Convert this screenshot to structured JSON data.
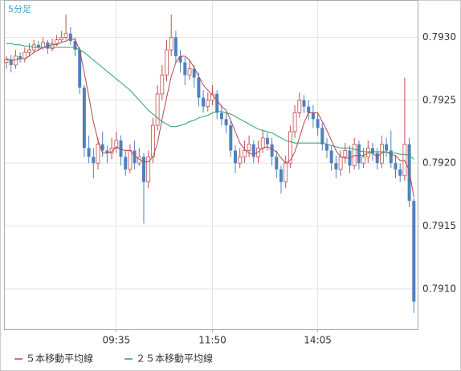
{
  "chart_data": {
    "type": "candlestick",
    "title": "5分足",
    "categories": [
      null,
      null,
      null,
      null,
      null,
      null,
      null,
      null,
      null,
      null,
      null,
      null,
      null,
      null,
      null,
      null,
      null,
      null,
      null,
      null,
      null,
      null,
      null,
      null,
      "09:35",
      null,
      null,
      null,
      null,
      null,
      null,
      null,
      null,
      null,
      null,
      null,
      null,
      null,
      null,
      null,
      null,
      null,
      null,
      null,
      null,
      "11:50",
      null,
      null,
      null,
      null,
      null,
      null,
      null,
      null,
      null,
      null,
      null,
      null,
      null,
      null,
      null,
      null,
      null,
      null,
      null,
      null,
      null,
      null,
      "14:05",
      null,
      null,
      null,
      null,
      null,
      null,
      null,
      null,
      null,
      null,
      null,
      null,
      null,
      null,
      null,
      null,
      null,
      null,
      null,
      null,
      null
    ],
    "open": [
      0.7928,
      0.79282,
      0.79278,
      0.79285,
      0.79283,
      0.79288,
      0.7929,
      0.79294,
      0.79292,
      0.79296,
      0.79291,
      0.79295,
      0.79298,
      0.793,
      0.79303,
      0.79297,
      0.7929,
      0.7926,
      0.79212,
      0.79205,
      0.792,
      0.79215,
      0.7921,
      0.79208,
      0.79212,
      0.79218,
      0.79205,
      0.79195,
      0.7921,
      0.792,
      0.79205,
      0.79185,
      0.79205,
      0.7923,
      0.79255,
      0.7927,
      0.7929,
      0.793,
      0.79285,
      0.7928,
      0.7927,
      0.79275,
      0.79268,
      0.79252,
      0.79245,
      0.7925,
      0.79255,
      0.7924,
      0.79235,
      0.7923,
      0.7921,
      0.792,
      0.79205,
      0.7921,
      0.79215,
      0.79205,
      0.79212,
      0.7922,
      0.79215,
      0.79205,
      0.79195,
      0.79185,
      0.792,
      0.79225,
      0.7924,
      0.7925,
      0.79245,
      0.7924,
      0.79235,
      0.79228,
      0.79215,
      0.7921,
      0.792,
      0.79195,
      0.79205,
      0.7921,
      0.79198,
      0.79215,
      0.792,
      0.79205,
      0.79212,
      0.79208,
      0.792,
      0.79215,
      0.7921,
      0.792,
      0.79195,
      0.7919,
      0.79215,
      0.7917
    ],
    "high": [
      0.79285,
      0.79286,
      0.7929,
      0.79288,
      0.79292,
      0.79295,
      0.79298,
      0.79297,
      0.793,
      0.79298,
      0.79299,
      0.79302,
      0.79305,
      0.79318,
      0.79308,
      0.793,
      0.79292,
      0.79262,
      0.79222,
      0.79212,
      0.7922,
      0.79225,
      0.79214,
      0.7922,
      0.79225,
      0.79222,
      0.7921,
      0.79215,
      0.79218,
      0.79212,
      0.79208,
      0.7921,
      0.79236,
      0.79262,
      0.79278,
      0.79298,
      0.79318,
      0.79305,
      0.7929,
      0.79284,
      0.79282,
      0.79278,
      0.79272,
      0.79258,
      0.79256,
      0.79262,
      0.79258,
      0.79246,
      0.7924,
      0.79234,
      0.79214,
      0.79212,
      0.79218,
      0.79222,
      0.79218,
      0.79218,
      0.79226,
      0.79224,
      0.7922,
      0.7921,
      0.79198,
      0.79206,
      0.7923,
      0.79246,
      0.79256,
      0.79254,
      0.7925,
      0.79246,
      0.7924,
      0.79232,
      0.7922,
      0.79214,
      0.79206,
      0.7921,
      0.79216,
      0.79214,
      0.7922,
      0.79218,
      0.79212,
      0.79218,
      0.79216,
      0.79212,
      0.79222,
      0.7922,
      0.79226,
      0.79206,
      0.792,
      0.79268,
      0.7922,
      0.79172
    ],
    "low": [
      0.79275,
      0.79272,
      0.79275,
      0.7928,
      0.7928,
      0.79285,
      0.79288,
      0.79289,
      0.7929,
      0.79287,
      0.79289,
      0.79293,
      0.79296,
      0.79298,
      0.79294,
      0.79285,
      0.79255,
      0.79205,
      0.792,
      0.79188,
      0.79195,
      0.79205,
      0.792,
      0.79203,
      0.79208,
      0.79198,
      0.7919,
      0.79192,
      0.79195,
      0.79198,
      0.79152,
      0.7918,
      0.792,
      0.79226,
      0.7925,
      0.79265,
      0.79285,
      0.7928,
      0.79272,
      0.79262,
      0.79266,
      0.7926,
      0.79245,
      0.7924,
      0.79241,
      0.79246,
      0.79235,
      0.7923,
      0.79224,
      0.79205,
      0.79192,
      0.79196,
      0.792,
      0.79205,
      0.792,
      0.792,
      0.79208,
      0.7921,
      0.79198,
      0.79188,
      0.79176,
      0.7918,
      0.79196,
      0.7922,
      0.79236,
      0.7924,
      0.79234,
      0.79228,
      0.79222,
      0.7921,
      0.79204,
      0.79194,
      0.79188,
      0.7919,
      0.792,
      0.79192,
      0.79195,
      0.79195,
      0.79196,
      0.792,
      0.79202,
      0.79195,
      0.79196,
      0.79205,
      0.79196,
      0.79188,
      0.79185,
      0.79186,
      0.79165,
      0.79081
    ],
    "close": [
      0.79282,
      0.79278,
      0.79285,
      0.79283,
      0.79288,
      0.7929,
      0.79294,
      0.79292,
      0.79296,
      0.79291,
      0.79295,
      0.79298,
      0.793,
      0.79303,
      0.79297,
      0.7929,
      0.7926,
      0.79212,
      0.79205,
      0.792,
      0.79215,
      0.7921,
      0.79208,
      0.79212,
      0.79218,
      0.79205,
      0.79195,
      0.7921,
      0.792,
      0.79205,
      0.79185,
      0.79205,
      0.7923,
      0.79255,
      0.7927,
      0.7929,
      0.793,
      0.79285,
      0.7928,
      0.7927,
      0.79275,
      0.79268,
      0.79252,
      0.79245,
      0.7925,
      0.79255,
      0.7924,
      0.79235,
      0.7923,
      0.7921,
      0.792,
      0.79205,
      0.7921,
      0.79215,
      0.79205,
      0.79212,
      0.7922,
      0.79215,
      0.79205,
      0.79195,
      0.79185,
      0.792,
      0.79225,
      0.7924,
      0.7925,
      0.79245,
      0.7924,
      0.79235,
      0.79228,
      0.79215,
      0.7921,
      0.792,
      0.79195,
      0.79205,
      0.7921,
      0.79198,
      0.79215,
      0.792,
      0.79205,
      0.79212,
      0.79208,
      0.792,
      0.79215,
      0.7921,
      0.792,
      0.79195,
      0.7919,
      0.79215,
      0.7917,
      0.7909
    ],
    "up_color": "#c0504d",
    "down_color": "#4f81bd",
    "series": [
      {
        "name": "５本移動平均線",
        "color": "#b5474f",
        "values": [
          0.79283,
          0.79282,
          0.79282,
          0.79283,
          0.79283,
          0.79285,
          0.79288,
          0.7929,
          0.79292,
          0.79293,
          0.79294,
          0.79294,
          0.79296,
          0.79297,
          0.79299,
          0.79298,
          0.7929,
          0.79272,
          0.79253,
          0.79233,
          0.79218,
          0.79208,
          0.79208,
          0.79209,
          0.79213,
          0.79211,
          0.7921,
          0.7921,
          0.79206,
          0.79203,
          0.79201,
          0.79201,
          0.79205,
          0.79216,
          0.79235,
          0.79252,
          0.79269,
          0.7928,
          0.79285,
          0.79285,
          0.79282,
          0.79276,
          0.79269,
          0.79262,
          0.79258,
          0.79254,
          0.7925,
          0.79245,
          0.79242,
          0.79234,
          0.79225,
          0.79216,
          0.79211,
          0.79208,
          0.79207,
          0.79209,
          0.79212,
          0.79213,
          0.79211,
          0.79209,
          0.79204,
          0.792,
          0.79202,
          0.79209,
          0.7922,
          0.79232,
          0.7924,
          0.7924,
          0.7924,
          0.79233,
          0.79226,
          0.79218,
          0.7921,
          0.79205,
          0.79204,
          0.79204,
          0.79206,
          0.79206,
          0.79206,
          0.79208,
          0.79208,
          0.79205,
          0.79208,
          0.79209,
          0.79207,
          0.79206,
          0.79202,
          0.79202,
          0.79194,
          0.79173
        ]
      },
      {
        "name": "２５本移動平均線",
        "color": "#2e9e6e",
        "values": [
          0.79295,
          0.79295,
          0.79294,
          0.79294,
          0.79293,
          0.79293,
          0.79292,
          0.79292,
          0.79292,
          0.79292,
          0.79292,
          0.79292,
          0.79292,
          0.79292,
          0.79292,
          0.79292,
          0.7929,
          0.79288,
          0.79285,
          0.79282,
          0.79279,
          0.79276,
          0.79273,
          0.7927,
          0.79267,
          0.79264,
          0.79261,
          0.79258,
          0.79254,
          0.7925,
          0.79246,
          0.79242,
          0.79239,
          0.79236,
          0.79233,
          0.79231,
          0.79229,
          0.79229,
          0.7923,
          0.79231,
          0.79233,
          0.79234,
          0.79236,
          0.79237,
          0.79238,
          0.7924,
          0.79241,
          0.79241,
          0.7924,
          0.79239,
          0.79237,
          0.79235,
          0.79233,
          0.79231,
          0.79229,
          0.79227,
          0.79226,
          0.79225,
          0.79224,
          0.79222,
          0.7922,
          0.79218,
          0.79217,
          0.79216,
          0.79216,
          0.79216,
          0.79216,
          0.79216,
          0.79216,
          0.79216,
          0.79215,
          0.79214,
          0.79213,
          0.79212,
          0.79212,
          0.79212,
          0.79211,
          0.7921,
          0.79209,
          0.79209,
          0.79209,
          0.79209,
          0.79209,
          0.79209,
          0.79208,
          0.79208,
          0.79207,
          0.79207,
          0.79206,
          0.79203
        ]
      }
    ],
    "ylim": [
      0.79068,
      0.79329
    ],
    "yticks": [
      {
        "value": 0.791,
        "label": "0.7910"
      },
      0.7915,
      {
        "value": 0.792,
        "label": "0.7920"
      },
      0.7925,
      {
        "value": 0.793,
        "label": "0.7930"
      }
    ],
    "grid": true,
    "legend": "bottom"
  }
}
